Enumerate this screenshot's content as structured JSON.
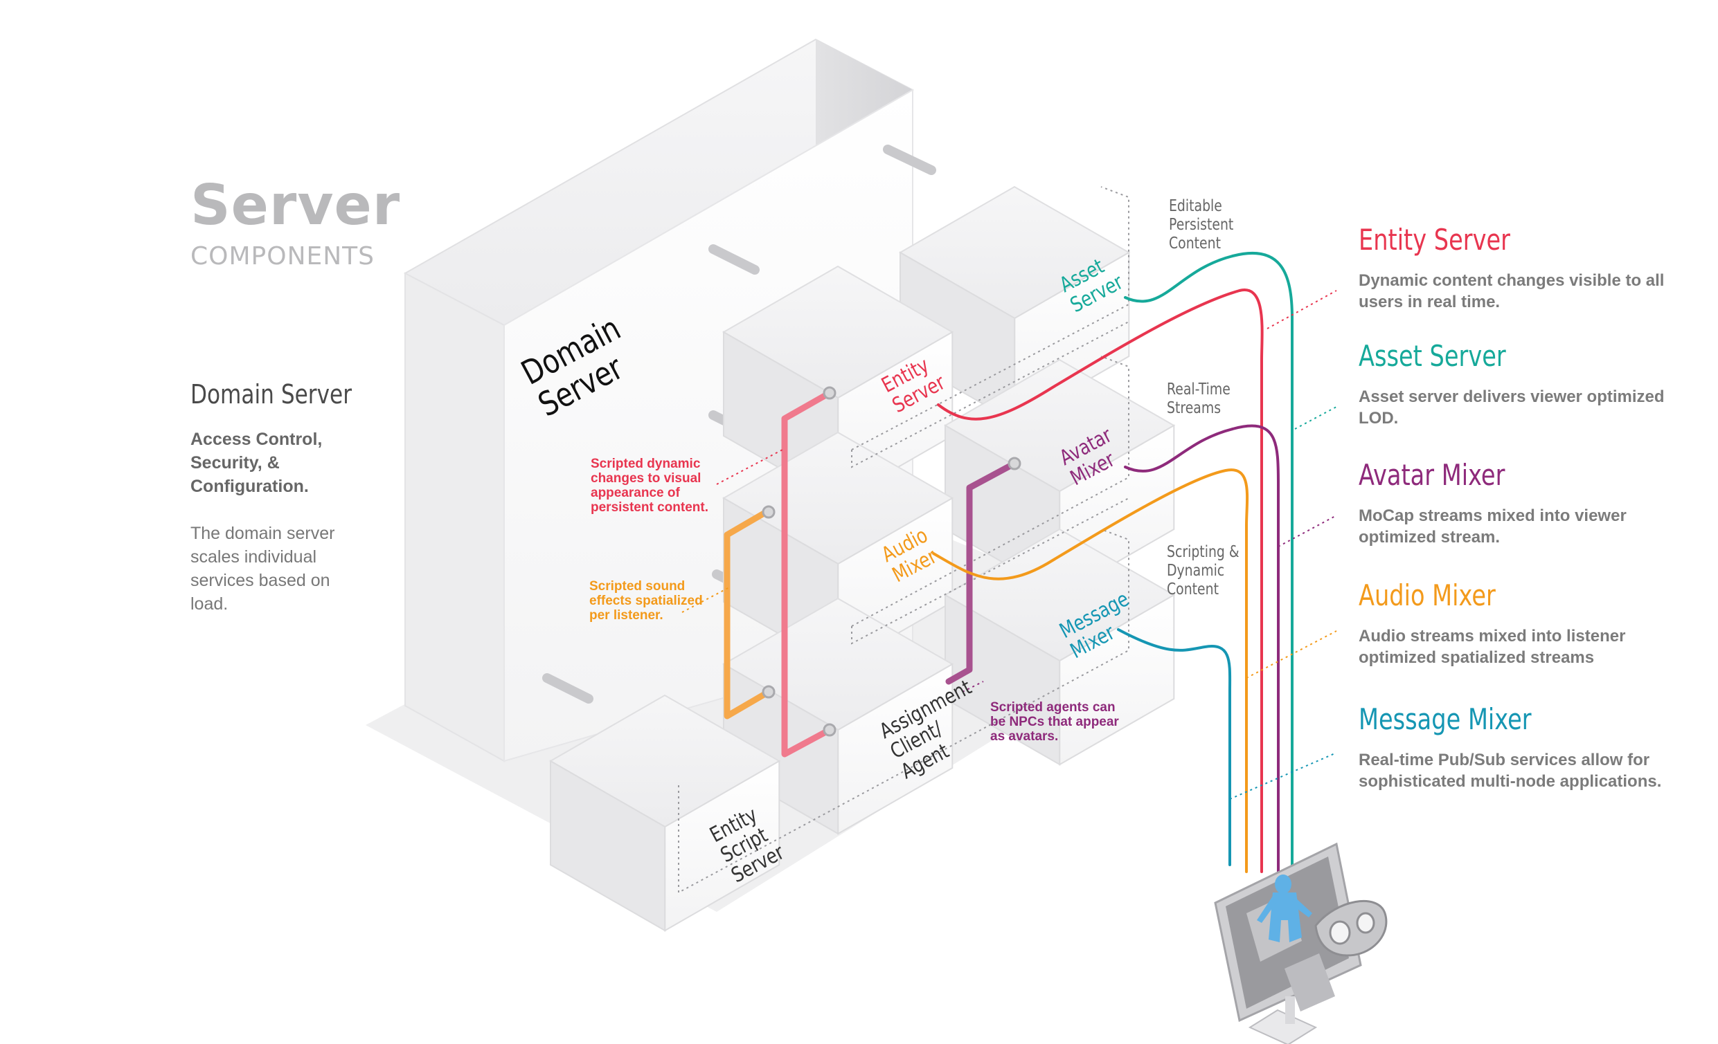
{
  "header": {
    "title": "Server",
    "subtitle": "COMPONENTS"
  },
  "domain_server_info": {
    "title": "Domain Server",
    "strong": "Access Control, Security, & Configuration.",
    "body": "The domain server scales individual services based on load."
  },
  "boxes": {
    "domain_server": "Domain Server",
    "entity_server": "Entity Server",
    "asset_server": "Asset Server",
    "avatar_mixer": "Avatar Mixer",
    "audio_mixer": "Audio Mixer",
    "message_mixer": "Message Mixer",
    "assignment_client": "Assignment Client/ Agent",
    "entity_script_server": "Entity Script Server"
  },
  "side_labels": {
    "editable": "Editable Persistent Content",
    "realtime": "Real-Time Streams",
    "scripting": "Scripting & Dynamic Content"
  },
  "notes": {
    "entity": "Scripted dynamic changes to visual appearance of persistent content.",
    "audio": "Scripted sound effects spatialized per listener.",
    "agents": "Scripted agents can be NPCs that appear as avatars."
  },
  "legend": [
    {
      "title": "Entity Server",
      "desc": "Dynamic content changes visible to all users in real time.",
      "color": "#e8354f"
    },
    {
      "title": "Asset Server",
      "desc": "Asset server delivers viewer optimized LOD.",
      "color": "#16a99a"
    },
    {
      "title": "Avatar Mixer",
      "desc": "MoCap streams mixed into viewer optimized stream.",
      "color": "#8e2a7b"
    },
    {
      "title": "Audio Mixer",
      "desc": "Audio streams mixed into listener optimized spatialized streams",
      "color": "#f39a1b"
    },
    {
      "title": "Message Mixer",
      "desc": "Real-time Pub/Sub services allow for sophisticated multi-node applications.",
      "color": "#1596b3"
    }
  ],
  "colors": {
    "entity": "#e8354f",
    "asset": "#16a99a",
    "avatar": "#8e2a7b",
    "audio": "#f39a1b",
    "message": "#1596b3",
    "box_text": "#333333"
  },
  "icons": [
    "monitor-icon",
    "vr-headset-icon",
    "avatar-figure-icon"
  ]
}
